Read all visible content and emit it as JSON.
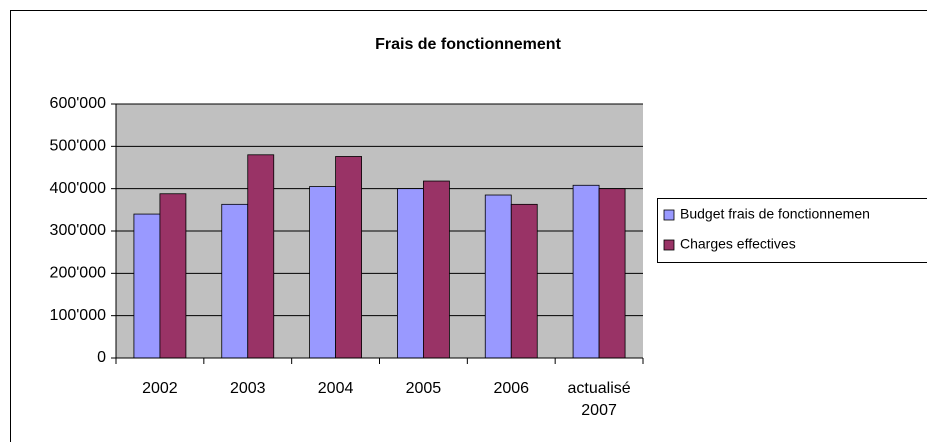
{
  "chart_data": {
    "type": "bar",
    "title": "Frais de fonctionnement",
    "categories": [
      "2002",
      "2003",
      "2004",
      "2005",
      "2006",
      "actualisé 2007"
    ],
    "series": [
      {
        "name": "Budget frais de fonctionnemen",
        "color": "#9999ff",
        "values": [
          340000,
          363000,
          405000,
          400000,
          385000,
          408000
        ]
      },
      {
        "name": "Charges effectives",
        "color": "#993366",
        "values": [
          388000,
          480000,
          476000,
          418000,
          363000,
          400000
        ]
      }
    ],
    "ylim": [
      0,
      600000
    ],
    "yticks": [
      {
        "value": 0,
        "label": "0"
      },
      {
        "value": 100000,
        "label": "100'000"
      },
      {
        "value": 200000,
        "label": "200'000"
      },
      {
        "value": 300000,
        "label": "300'000"
      },
      {
        "value": 400000,
        "label": "400'000"
      },
      {
        "value": 500000,
        "label": "500'000"
      },
      {
        "value": 600000,
        "label": "600'000"
      }
    ],
    "grid": true,
    "plot_background": "#c0c0c0",
    "legend": "right"
  }
}
